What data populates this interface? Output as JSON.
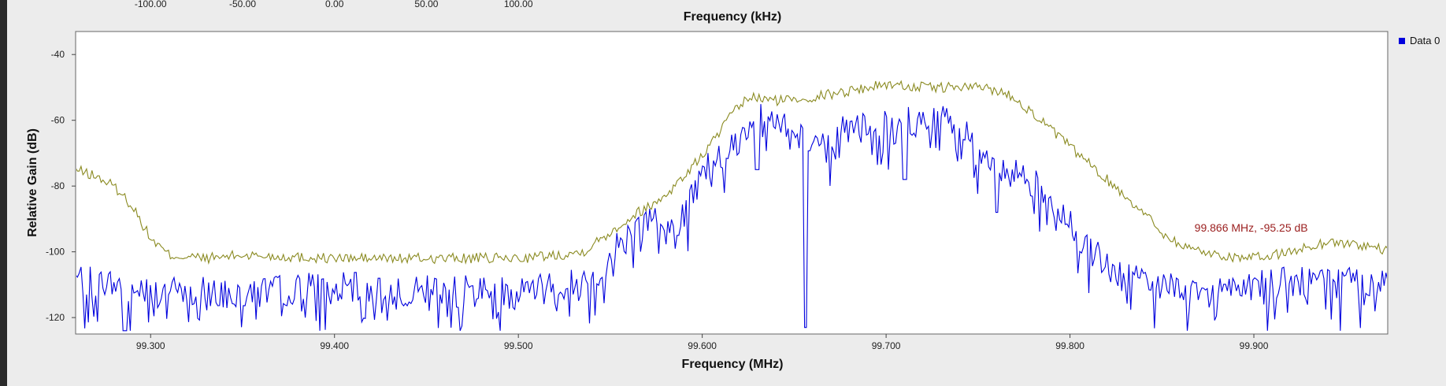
{
  "chart_data": {
    "type": "line",
    "xlabel": "Frequency (MHz)",
    "xlabel_top": "Frequency (kHz)",
    "ylabel": "Relative Gain (dB)",
    "xlim": [
      99.2592,
      99.9728
    ],
    "ylim": [
      -125,
      -33
    ],
    "top_xlim": [
      -140.8,
      572.8
    ],
    "x_ticks": [
      "99.300",
      "99.400",
      "99.500",
      "99.600",
      "99.700",
      "99.800",
      "99.900"
    ],
    "x_tick_values": [
      99.3,
      99.4,
      99.5,
      99.6,
      99.7,
      99.8,
      99.9
    ],
    "top_ticks": [
      "-100.00",
      "-50.00",
      "0.00",
      "50.00",
      "100.00"
    ],
    "top_tick_values": [
      -100,
      -50,
      0,
      50,
      100
    ],
    "y_ticks": [
      "-40",
      "-60",
      "-80",
      "-100",
      "-120"
    ],
    "y_tick_values": [
      -40,
      -60,
      -80,
      -100,
      -120
    ],
    "legend": [
      "Data 0"
    ],
    "legend_position": "top-right",
    "marker_label": "99.866 MHz, -95.25 dB",
    "marker": {
      "x": 99.866,
      "y": -95.25
    },
    "series": [
      {
        "color": "#0000dd",
        "points": [
          [
            99.259,
            -108
          ],
          [
            99.28,
            -110
          ],
          [
            99.3,
            -112
          ],
          [
            99.35,
            -112
          ],
          [
            99.4,
            -111
          ],
          [
            99.45,
            -112
          ],
          [
            99.5,
            -112
          ],
          [
            99.53,
            -110
          ],
          [
            99.545,
            -107
          ],
          [
            99.555,
            -97
          ],
          [
            99.565,
            -94
          ],
          [
            99.575,
            -88
          ],
          [
            99.585,
            -95
          ],
          [
            99.595,
            -82
          ],
          [
            99.6,
            -76
          ],
          [
            99.61,
            -70
          ],
          [
            99.62,
            -66
          ],
          [
            99.63,
            -58
          ],
          [
            99.64,
            -60
          ],
          [
            99.65,
            -63
          ],
          [
            99.66,
            -66
          ],
          [
            99.67,
            -65
          ],
          [
            99.68,
            -63
          ],
          [
            99.7,
            -62
          ],
          [
            99.72,
            -60
          ],
          [
            99.73,
            -58
          ],
          [
            99.74,
            -63
          ],
          [
            99.75,
            -68
          ],
          [
            99.76,
            -75
          ],
          [
            99.77,
            -74
          ],
          [
            99.78,
            -79
          ],
          [
            99.79,
            -86
          ],
          [
            99.8,
            -92
          ],
          [
            99.81,
            -98
          ],
          [
            99.82,
            -105
          ],
          [
            99.84,
            -110
          ],
          [
            99.86,
            -110
          ],
          [
            99.9,
            -110
          ],
          [
            99.94,
            -109
          ],
          [
            99.973,
            -108
          ]
        ],
        "dips": [
          [
            99.286,
            -124
          ],
          [
            99.587,
            -95
          ],
          [
            99.656,
            -123
          ],
          [
            99.63,
            -75
          ],
          [
            99.71,
            -78
          ],
          [
            99.76,
            -88
          ]
        ]
      },
      {
        "color": "#8a8a20",
        "points": [
          [
            99.259,
            -75
          ],
          [
            99.27,
            -77
          ],
          [
            99.28,
            -80
          ],
          [
            99.29,
            -86
          ],
          [
            99.3,
            -96
          ],
          [
            99.31,
            -101
          ],
          [
            99.33,
            -102
          ],
          [
            99.35,
            -101
          ],
          [
            99.4,
            -102
          ],
          [
            99.45,
            -102
          ],
          [
            99.5,
            -102
          ],
          [
            99.52,
            -101
          ],
          [
            99.535,
            -100
          ],
          [
            99.545,
            -96
          ],
          [
            99.555,
            -92
          ],
          [
            99.565,
            -88
          ],
          [
            99.575,
            -85
          ],
          [
            99.585,
            -80
          ],
          [
            99.595,
            -74
          ],
          [
            99.605,
            -67
          ],
          [
            99.615,
            -59
          ],
          [
            99.625,
            -53
          ],
          [
            99.64,
            -54
          ],
          [
            99.66,
            -53
          ],
          [
            99.68,
            -51
          ],
          [
            99.7,
            -49
          ],
          [
            99.72,
            -50
          ],
          [
            99.74,
            -50
          ],
          [
            99.755,
            -50
          ],
          [
            99.77,
            -53
          ],
          [
            99.78,
            -58
          ],
          [
            99.79,
            -63
          ],
          [
            99.8,
            -68
          ],
          [
            99.81,
            -73
          ],
          [
            99.82,
            -78
          ],
          [
            99.83,
            -83
          ],
          [
            99.84,
            -88
          ],
          [
            99.85,
            -94
          ],
          [
            99.86,
            -98
          ],
          [
            99.88,
            -101
          ],
          [
            99.9,
            -102
          ],
          [
            99.92,
            -100
          ],
          [
            99.94,
            -97
          ],
          [
            99.96,
            -98
          ],
          [
            99.973,
            -100
          ]
        ]
      }
    ]
  }
}
